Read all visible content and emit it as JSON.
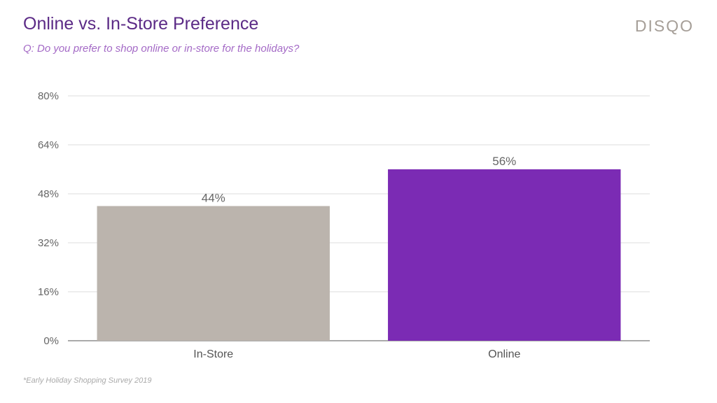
{
  "header": {
    "title": "Online vs. In-Store Preference",
    "subtitle": "Q: Do you prefer to shop online or in-store for the holidays?",
    "logo": "DISQO"
  },
  "footnote": "*Early Holiday Shopping Survey 2019",
  "colors": {
    "title": "#5b2a86",
    "subtitle": "#a46ac6",
    "grid": "#dddddd",
    "axis": "#555555"
  },
  "chart_data": {
    "type": "bar",
    "title": "Online vs. In-Store Preference",
    "subtitle": "Q: Do you prefer to shop online or in-store for the holidays?",
    "categories": [
      "In-Store",
      "Online"
    ],
    "values": [
      44,
      56
    ],
    "value_labels": [
      "44%",
      "56%"
    ],
    "bar_colors": [
      "#bbb4ad",
      "#7b2bb4"
    ],
    "yticks": [
      0,
      16,
      32,
      48,
      64,
      80
    ],
    "ytick_labels": [
      "0%",
      "16%",
      "32%",
      "48%",
      "64%",
      "80%"
    ],
    "ylim": [
      0,
      80
    ],
    "xlabel": "",
    "ylabel": "",
    "grid": true,
    "legend": false
  }
}
